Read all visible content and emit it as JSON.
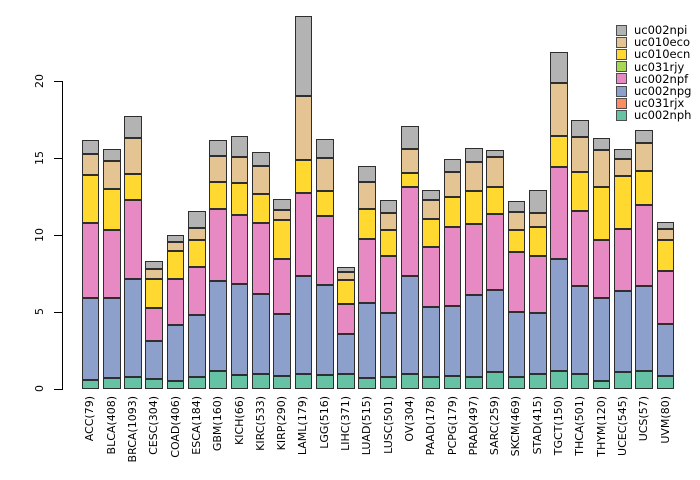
{
  "chart_data": {
    "type": "bar",
    "stacked": true,
    "title": "",
    "xlabel": "",
    "ylabel": "",
    "categories": [
      "ACC(79)",
      "BLCA(408)",
      "BRCA(1093)",
      "CESC(304)",
      "COAD(406)",
      "ESCA(184)",
      "GBM(160)",
      "KICH(66)",
      "KIRC(533)",
      "KIRP(290)",
      "LAML(179)",
      "LGG(516)",
      "LIHC(371)",
      "LUAD(515)",
      "LUSC(501)",
      "OV(304)",
      "PAAD(178)",
      "PCPG(179)",
      "PRAD(497)",
      "SARC(259)",
      "SKCM(469)",
      "STAD(415)",
      "TGCT(150)",
      "THCA(501)",
      "THYM(120)",
      "UCEC(545)",
      "UCS(57)",
      "UVM(80)"
    ],
    "series_bottom_to_top": [
      {
        "name": "uc002nph",
        "color": "#66c2a5",
        "values": [
          0.6,
          0.7,
          0.8,
          0.65,
          0.55,
          0.8,
          1.15,
          0.9,
          0.95,
          0.85,
          1.0,
          0.9,
          0.95,
          0.7,
          0.75,
          0.95,
          0.8,
          0.85,
          0.75,
          1.1,
          0.8,
          1.0,
          1.2,
          0.95,
          0.5,
          1.1,
          1.2,
          0.85
        ]
      },
      {
        "name": "uc031rjx",
        "color": "#fc8d62",
        "values": [
          0,
          0,
          0,
          0,
          0,
          0,
          0,
          0,
          0,
          0,
          0,
          0,
          0,
          0,
          0,
          0,
          0,
          0,
          0,
          0,
          0,
          0,
          0,
          0,
          0,
          0,
          0,
          0
        ]
      },
      {
        "name": "uc002npg",
        "color": "#8da0cb",
        "values": [
          5.3,
          5.2,
          6.35,
          2.5,
          3.6,
          4.0,
          5.85,
          5.9,
          5.2,
          4.0,
          6.35,
          5.85,
          2.65,
          4.9,
          4.2,
          6.4,
          4.55,
          4.55,
          5.35,
          5.35,
          4.2,
          3.95,
          7.25,
          5.75,
          5.4,
          5.25,
          5.5,
          3.35
        ]
      },
      {
        "name": "uc002npf",
        "color": "#e78ac3",
        "values": [
          4.9,
          4.45,
          5.1,
          2.1,
          3.0,
          3.15,
          4.7,
          4.5,
          4.65,
          3.6,
          5.35,
          4.5,
          1.95,
          4.15,
          3.7,
          5.75,
          3.85,
          5.1,
          4.6,
          4.9,
          3.9,
          3.7,
          5.95,
          4.85,
          3.8,
          4.05,
          5.25,
          3.45
        ]
      },
      {
        "name": "uc031rjy",
        "color": "#a6d854",
        "values": [
          0,
          0,
          0,
          0,
          0,
          0,
          0,
          0,
          0,
          0,
          0,
          0,
          0,
          0,
          0,
          0,
          0,
          0,
          0,
          0,
          0,
          0,
          0,
          0,
          0,
          0,
          0,
          0
        ]
      },
      {
        "name": "uc010ecn",
        "color": "#ffd92f",
        "values": [
          3.1,
          2.65,
          1.7,
          1.9,
          1.8,
          1.75,
          1.75,
          2.1,
          1.85,
          2.5,
          2.15,
          1.6,
          1.55,
          1.95,
          1.65,
          0.95,
          1.85,
          2.0,
          2.15,
          1.8,
          1.45,
          1.85,
          2.0,
          2.55,
          3.45,
          3.45,
          2.2,
          2.05
        ]
      },
      {
        "name": "uc010eco",
        "color": "#e5c494",
        "values": [
          1.35,
          1.8,
          2.35,
          0.65,
          0.6,
          0.75,
          1.7,
          1.65,
          1.8,
          0.65,
          4.2,
          2.15,
          0.5,
          1.75,
          1.1,
          1.55,
          1.2,
          1.6,
          1.9,
          1.95,
          1.15,
          0.95,
          3.45,
          2.25,
          2.4,
          1.1,
          1.85,
          0.7
        ]
      },
      {
        "name": "uc002npi",
        "color": "#b3b3b3",
        "values": [
          0.9,
          0.8,
          1.45,
          0.5,
          0.45,
          1.1,
          1.0,
          1.35,
          0.95,
          0.75,
          5.2,
          1.25,
          0.3,
          1.05,
          0.85,
          1.5,
          0.65,
          0.85,
          0.9,
          0.45,
          0.7,
          1.45,
          2.05,
          1.15,
          0.75,
          0.65,
          0.8,
          0.45
        ]
      }
    ],
    "totals": [
      16.15,
      15.6,
      17.75,
      8.3,
      10.0,
      11.55,
      16.15,
      16.4,
      15.4,
      12.35,
      24.25,
      16.25,
      7.9,
      14.5,
      12.25,
      17.1,
      12.9,
      14.95,
      15.65,
      15.55,
      12.2,
      12.9,
      21.9,
      17.5,
      16.3,
      15.6,
      16.8,
      10.85
    ],
    "legend": {
      "position": "top-right",
      "order_top_to_bottom": [
        "uc002npi",
        "uc010eco",
        "uc010ecn",
        "uc031rjy",
        "uc002npf",
        "uc002npg",
        "uc031rjx",
        "uc002nph"
      ]
    },
    "y_axis": {
      "ticks": [
        0,
        5,
        10,
        15,
        20
      ],
      "ylim": [
        0,
        24.3
      ],
      "label_rotation_deg": 90
    },
    "x_axis": {
      "label_rotation_deg": 90,
      "grid": false
    }
  },
  "styles": {
    "background": "#ffffff",
    "bar_border": "#2e2e2e",
    "axis_color": "#000000",
    "text_color": "#000000"
  }
}
